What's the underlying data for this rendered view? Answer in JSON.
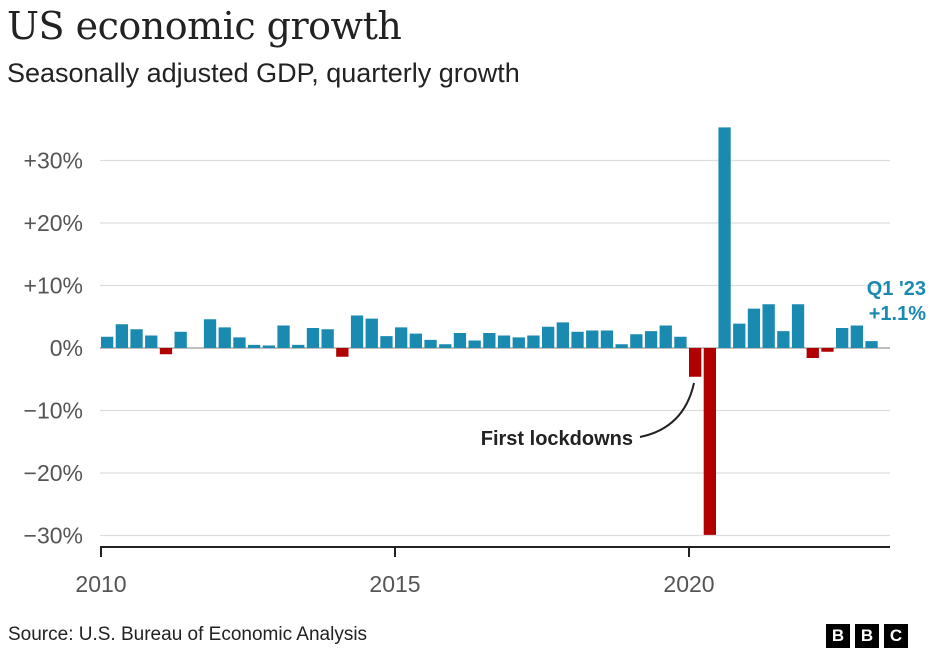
{
  "title": "US economic growth",
  "subtitle": "Seasonally adjusted GDP, quarterly growth",
  "source": "Source: U.S. Bureau of Economic Analysis",
  "logo": [
    "B",
    "B",
    "C"
  ],
  "colors": {
    "positive": "#1b8ab1",
    "negative": "#b00000",
    "grid": "#dddddd",
    "axis": "#222222",
    "label_q1": "#1b8ab1"
  },
  "chart_data": {
    "type": "bar",
    "title": "US economic growth",
    "subtitle": "Seasonally adjusted GDP, quarterly growth",
    "xlabel": "",
    "ylabel": "",
    "unit": "%",
    "ylim": [
      -30,
      35
    ],
    "y_ticks": [
      30,
      20,
      10,
      0,
      -10,
      -20,
      -30
    ],
    "y_tick_labels": [
      "+30%",
      "+20%",
      "+10%",
      "0%",
      "−10%",
      "−20%",
      "−30%"
    ],
    "x_ticks": [
      "2010",
      "2015",
      "2020"
    ],
    "grid": true,
    "categories": [
      "2010 Q1",
      "2010 Q2",
      "2010 Q3",
      "2010 Q4",
      "2011 Q1",
      "2011 Q2",
      "2011 Q3",
      "2011 Q4",
      "2012 Q1",
      "2012 Q2",
      "2012 Q3",
      "2012 Q4",
      "2013 Q1",
      "2013 Q2",
      "2013 Q3",
      "2013 Q4",
      "2014 Q1",
      "2014 Q2",
      "2014 Q3",
      "2014 Q4",
      "2015 Q1",
      "2015 Q2",
      "2015 Q3",
      "2015 Q4",
      "2016 Q1",
      "2016 Q2",
      "2016 Q3",
      "2016 Q4",
      "2017 Q1",
      "2017 Q2",
      "2017 Q3",
      "2017 Q4",
      "2018 Q1",
      "2018 Q2",
      "2018 Q3",
      "2018 Q4",
      "2019 Q1",
      "2019 Q2",
      "2019 Q3",
      "2019 Q4",
      "2020 Q1",
      "2020 Q2",
      "2020 Q3",
      "2020 Q4",
      "2021 Q1",
      "2021 Q2",
      "2021 Q3",
      "2021 Q4",
      "2022 Q1",
      "2022 Q2",
      "2022 Q3",
      "2022 Q4",
      "2023 Q1"
    ],
    "values": [
      1.8,
      3.8,
      3.0,
      2.0,
      -1.0,
      2.6,
      0.0,
      4.6,
      3.3,
      1.7,
      0.5,
      0.4,
      3.6,
      0.5,
      3.2,
      3.0,
      -1.4,
      5.2,
      4.7,
      1.9,
      3.3,
      2.3,
      1.3,
      0.6,
      2.4,
      1.2,
      2.4,
      2.0,
      1.7,
      2.0,
      3.4,
      4.1,
      2.6,
      2.8,
      2.8,
      0.6,
      2.2,
      2.7,
      3.6,
      1.8,
      -4.6,
      -29.9,
      35.3,
      3.9,
      6.3,
      7.0,
      2.7,
      7.0,
      -1.6,
      -0.6,
      3.2,
      3.6,
      1.1
    ],
    "annotations": [
      {
        "text": "First lockdowns",
        "target": "2020 Q2"
      },
      {
        "text": "Q1 '23",
        "target": "2023 Q1"
      },
      {
        "text": "+1.1%",
        "target": "2023 Q1"
      }
    ]
  }
}
